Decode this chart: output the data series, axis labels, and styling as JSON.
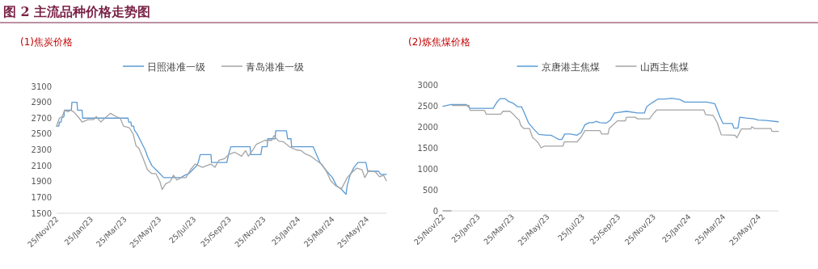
{
  "chart_data": [
    {
      "type": "line",
      "title": "(1)焦炭价格",
      "annotations": [
        "图 2 主流品种价格走势图"
      ],
      "legend": "top",
      "xlim": [
        "2022-11-25",
        "2024-06-28"
      ],
      "ylim": [
        1500,
        3100
      ],
      "yticks": [
        1500,
        1700,
        1900,
        2100,
        2300,
        2500,
        2700,
        2900,
        3100
      ],
      "xticks": [
        {
          "value": "2022-11-25",
          "label": "25/Nov/22"
        },
        {
          "value": "2023-01-25",
          "label": "25/Jan/23"
        },
        {
          "value": "2023-03-25",
          "label": "25/Mar/23"
        },
        {
          "value": "2023-05-25",
          "label": "25/May/23"
        },
        {
          "value": "2023-07-25",
          "label": "25/Jul/23"
        },
        {
          "value": "2023-09-25",
          "label": "25/Sep/23"
        },
        {
          "value": "2023-11-25",
          "label": "25/Nov/23"
        },
        {
          "value": "2024-01-25",
          "label": "25/Jan/24"
        },
        {
          "value": "2024-03-25",
          "label": "25/Mar/24"
        },
        {
          "value": "2024-05-25",
          "label": "25/May/24"
        }
      ],
      "series": [
        {
          "name": "日照港准一级",
          "color": "#5b9bd5",
          "x": [
            "2022-11-25",
            "2022-11-29",
            "2022-11-30",
            "2022-12-03",
            "2022-12-04",
            "2022-12-08",
            "2022-12-09",
            "2022-12-21",
            "2022-12-22",
            "2022-12-31",
            "2023-01-01",
            "2023-01-09",
            "2023-01-10",
            "2023-03-31",
            "2023-04-01",
            "2023-04-05",
            "2023-04-06",
            "2023-04-10",
            "2023-04-11",
            "2023-04-16",
            "2023-04-23",
            "2023-04-30",
            "2023-05-05",
            "2023-05-12",
            "2023-05-19",
            "2023-05-26",
            "2023-06-02",
            "2023-07-02",
            "2023-07-09",
            "2023-07-16",
            "2023-07-23",
            "2023-07-30",
            "2023-08-02",
            "2023-08-05",
            "2023-08-24",
            "2023-08-25",
            "2023-09-21",
            "2023-09-24",
            "2023-09-28",
            "2023-11-01",
            "2023-11-02",
            "2023-11-20",
            "2023-11-22",
            "2023-12-01",
            "2023-12-02",
            "2023-12-15",
            "2023-12-16",
            "2024-01-04",
            "2024-01-06",
            "2024-01-12",
            "2024-01-13",
            "2024-02-20",
            "2024-02-26",
            "2024-03-03",
            "2024-03-15",
            "2024-03-25",
            "2024-04-01",
            "2024-04-10",
            "2024-04-18",
            "2024-04-20",
            "2024-04-25",
            "2024-05-02",
            "2024-05-09",
            "2024-05-23",
            "2024-05-26",
            "2024-06-14",
            "2024-06-18",
            "2024-06-28"
          ],
          "values": [
            2600,
            2600,
            2650,
            2650,
            2700,
            2720,
            2800,
            2800,
            2900,
            2900,
            2800,
            2800,
            2700,
            2700,
            2650,
            2650,
            2600,
            2600,
            2550,
            2500,
            2400,
            2300,
            2200,
            2100,
            2050,
            2000,
            1950,
            1950,
            1980,
            2000,
            2050,
            2100,
            2150,
            2240,
            2240,
            2140,
            2140,
            2240,
            2340,
            2340,
            2240,
            2240,
            2340,
            2340,
            2440,
            2440,
            2540,
            2540,
            2440,
            2440,
            2340,
            2340,
            2240,
            2140,
            2030,
            1950,
            1850,
            1800,
            1740,
            1850,
            1980,
            2080,
            2140,
            2140,
            2030,
            2030,
            1990,
            1990
          ]
        },
        {
          "name": "青岛港准一级",
          "color": "#a5a5a5",
          "x": [
            "2022-11-25",
            "2022-11-30",
            "2022-12-05",
            "2022-12-09",
            "2022-12-15",
            "2022-12-20",
            "2022-12-25",
            "2023-01-04",
            "2023-01-09",
            "2023-01-19",
            "2023-01-29",
            "2023-02-03",
            "2023-02-11",
            "2023-02-18",
            "2023-02-28",
            "2023-03-10",
            "2023-03-17",
            "2023-03-23",
            "2023-04-02",
            "2023-04-09",
            "2023-04-14",
            "2023-04-19",
            "2023-04-26",
            "2023-05-04",
            "2023-05-12",
            "2023-05-19",
            "2023-05-26",
            "2023-05-30",
            "2023-06-05",
            "2023-06-13",
            "2023-06-19",
            "2023-06-25",
            "2023-07-03",
            "2023-07-11",
            "2023-07-19",
            "2023-07-27",
            "2023-08-09",
            "2023-08-24",
            "2023-08-31",
            "2023-09-07",
            "2023-09-17",
            "2023-09-24",
            "2023-10-05",
            "2023-10-17",
            "2023-10-24",
            "2023-10-29",
            "2023-11-05",
            "2023-11-12",
            "2023-11-27",
            "2023-12-09",
            "2023-12-13",
            "2023-12-21",
            "2023-12-30",
            "2024-01-09",
            "2024-01-21",
            "2024-01-30",
            "2024-02-06",
            "2024-02-16",
            "2024-02-25",
            "2024-03-06",
            "2024-03-15",
            "2024-03-22",
            "2024-03-30",
            "2024-04-10",
            "2024-04-20",
            "2024-04-29",
            "2024-05-07",
            "2024-05-16",
            "2024-05-21",
            "2024-05-28",
            "2024-06-09",
            "2024-06-16",
            "2024-06-23",
            "2024-06-28"
          ],
          "values": [
            2600,
            2700,
            2720,
            2800,
            2780,
            2800,
            2780,
            2700,
            2650,
            2680,
            2680,
            2720,
            2650,
            2700,
            2760,
            2720,
            2700,
            2600,
            2580,
            2500,
            2350,
            2320,
            2200,
            2050,
            2000,
            2000,
            1900,
            1800,
            1870,
            1900,
            1980,
            1920,
            1950,
            1950,
            2050,
            2120,
            2080,
            2120,
            2080,
            2170,
            2190,
            2240,
            2270,
            2220,
            2290,
            2220,
            2290,
            2370,
            2420,
            2420,
            2480,
            2410,
            2400,
            2340,
            2300,
            2290,
            2250,
            2220,
            2170,
            2120,
            2020,
            1910,
            1850,
            1810,
            1950,
            2020,
            2070,
            2050,
            1950,
            2040,
            2020,
            1960,
            1980,
            1910
          ]
        }
      ]
    },
    {
      "type": "line",
      "title": "(2)炼焦煤价格",
      "legend": "top",
      "xlim": [
        "2022-11-25",
        "2024-06-28"
      ],
      "ylim": [
        0,
        3000
      ],
      "yticks": [
        0,
        500,
        1000,
        1500,
        2000,
        2500,
        3000
      ],
      "xticks": [
        {
          "value": "2022-11-25",
          "label": "25/Nov/22"
        },
        {
          "value": "2023-01-25",
          "label": "25/Jan/23"
        },
        {
          "value": "2023-03-25",
          "label": "25/Mar/23"
        },
        {
          "value": "2023-05-25",
          "label": "25/May/23"
        },
        {
          "value": "2023-07-25",
          "label": "25/Jul/23"
        },
        {
          "value": "2023-09-25",
          "label": "25/Sep/23"
        },
        {
          "value": "2023-11-25",
          "label": "25/Nov/23"
        },
        {
          "value": "2024-01-25",
          "label": "25/Jan/24"
        },
        {
          "value": "2024-03-25",
          "label": "25/Mar/24"
        },
        {
          "value": "2024-05-25",
          "label": "25/May/24"
        }
      ],
      "series": [
        {
          "name": "京唐港主焦煤",
          "color": "#5b9bd5",
          "x": [
            "2022-11-25",
            "2022-12-09",
            "2023-01-04",
            "2023-01-11",
            "2023-02-20",
            "2023-02-27",
            "2023-03-04",
            "2023-03-13",
            "2023-03-18",
            "2023-03-27",
            "2023-04-03",
            "2023-04-10",
            "2023-04-15",
            "2023-04-22",
            "2023-05-01",
            "2023-05-10",
            "2023-05-24",
            "2023-05-31",
            "2023-06-07",
            "2023-06-14",
            "2023-06-19",
            "2023-06-24",
            "2023-07-03",
            "2023-07-15",
            "2023-07-22",
            "2023-07-29",
            "2023-08-05",
            "2023-08-12",
            "2023-08-17",
            "2023-08-24",
            "2023-09-04",
            "2023-09-11",
            "2023-09-18",
            "2023-10-09",
            "2023-10-28",
            "2023-11-09",
            "2023-11-13",
            "2023-11-23",
            "2023-12-02",
            "2023-12-14",
            "2023-12-26",
            "2024-01-09",
            "2024-01-18",
            "2024-02-25",
            "2024-03-10",
            "2024-03-19",
            "2024-03-24",
            "2024-04-09",
            "2024-04-12",
            "2024-04-19",
            "2024-04-22",
            "2024-05-03",
            "2024-05-17",
            "2024-05-24",
            "2024-06-07",
            "2024-06-28"
          ],
          "values": [
            2490,
            2530,
            2530,
            2440,
            2440,
            2600,
            2670,
            2670,
            2610,
            2560,
            2480,
            2480,
            2330,
            2100,
            1950,
            1820,
            1800,
            1800,
            1750,
            1700,
            1700,
            1830,
            1830,
            1800,
            1860,
            2050,
            2100,
            2100,
            2130,
            2100,
            2090,
            2160,
            2330,
            2370,
            2330,
            2330,
            2480,
            2580,
            2660,
            2660,
            2680,
            2650,
            2590,
            2590,
            2550,
            2230,
            2080,
            2080,
            1970,
            1970,
            2230,
            2210,
            2190,
            2160,
            2150,
            2120
          ]
        },
        {
          "name": "山西主焦煤",
          "color": "#a5a5a5",
          "x": [
            "2022-11-25",
            "2022-12-09",
            "2022-12-10",
            "2022-12-11",
            "2023-01-09",
            "2023-01-11",
            "2023-02-05",
            "2023-02-08",
            "2023-03-05",
            "2023-03-09",
            "2023-03-21",
            "2023-03-27",
            "2023-04-01",
            "2023-04-06",
            "2023-04-09",
            "2023-04-14",
            "2023-04-24",
            "2023-04-29",
            "2023-05-04",
            "2023-05-09",
            "2023-05-14",
            "2023-05-20",
            "2023-06-21",
            "2023-06-23",
            "2023-07-15",
            "2023-07-22",
            "2023-07-29",
            "2023-08-24",
            "2023-08-27",
            "2023-09-07",
            "2023-09-09",
            "2023-09-23",
            "2023-10-07",
            "2023-10-09",
            "2023-10-24",
            "2023-10-28",
            "2023-11-18",
            "2023-11-23",
            "2023-11-30",
            "2024-02-20",
            "2024-02-23",
            "2024-03-07",
            "2024-03-14",
            "2024-03-21",
            "2024-04-14",
            "2024-04-17",
            "2024-04-25",
            "2024-05-11",
            "2024-05-13",
            "2024-05-18",
            "2024-06-15",
            "2024-06-17",
            "2024-06-28"
          ],
          "values": [
            0,
            0,
            null,
            2510,
            2510,
            2390,
            2390,
            2300,
            2300,
            2370,
            2370,
            2300,
            2220,
            2160,
            2030,
            1960,
            1960,
            1750,
            1690,
            1620,
            1500,
            1540,
            1540,
            1640,
            1640,
            1750,
            1910,
            1910,
            1830,
            1830,
            1960,
            2140,
            2140,
            2230,
            2230,
            2190,
            2190,
            2290,
            2400,
            2400,
            2290,
            2270,
            2100,
            1810,
            1800,
            1740,
            1950,
            1950,
            2000,
            1960,
            1960,
            1890,
            1890
          ]
        }
      ]
    }
  ]
}
